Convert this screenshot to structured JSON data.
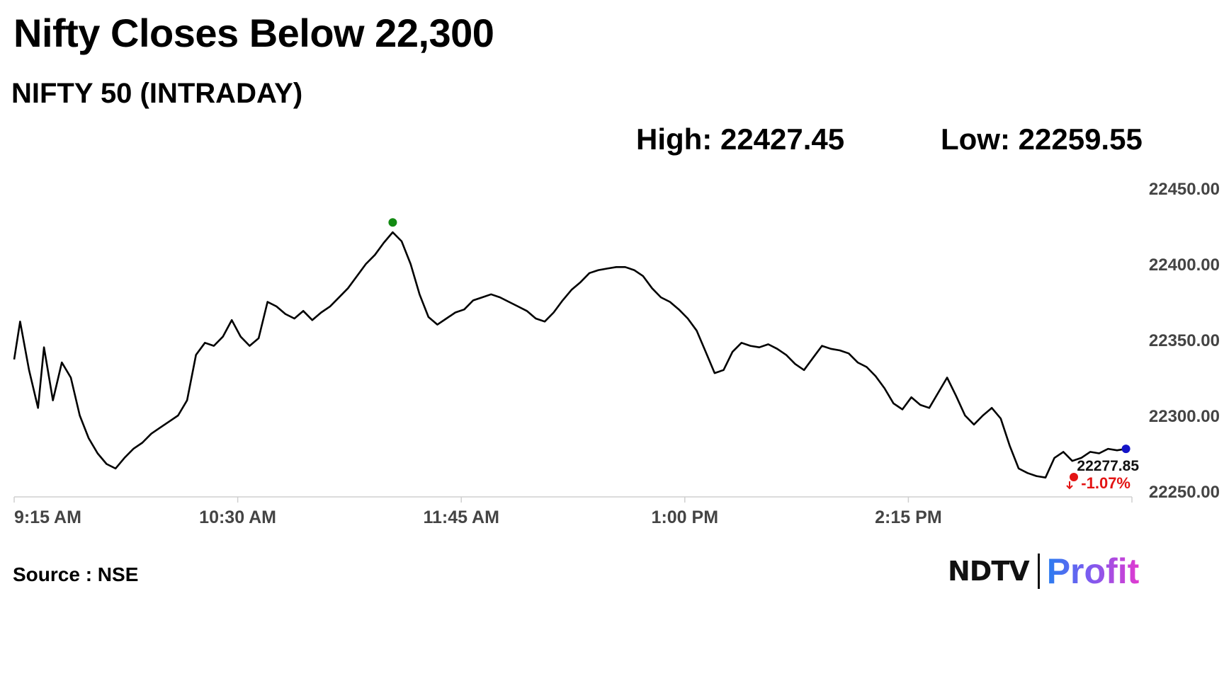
{
  "title": "Nifty Closes Below 22,300",
  "subtitle": "NIFTY 50 (INTRADAY)",
  "stats": {
    "high_label": "High: 22427.45",
    "low_label": "Low: 22259.55"
  },
  "source": "Source : NSE",
  "brand": {
    "left": "NDTV",
    "right": "Profit"
  },
  "colors": {
    "line": "#000000",
    "high_marker": "#138a13",
    "close_marker": "#e31414",
    "last_marker": "#1414c8",
    "change_text": "#e31414"
  },
  "chart_data": {
    "type": "line",
    "title": "NIFTY 50 (INTRADAY)",
    "xlabel": "",
    "ylabel": "",
    "x_range": [
      "9:15 AM",
      "3:30 PM"
    ],
    "x_ticks": [
      "9:15 AM",
      "10:30 AM",
      "11:45 AM",
      "1:00 PM",
      "2:15 PM"
    ],
    "ylim": [
      22250,
      22450
    ],
    "y_ticks": [
      "22250.00",
      "22300.00",
      "22350.00",
      "22400.00",
      "22450.00"
    ],
    "grid": false,
    "high": 22427.45,
    "low": 22259.55,
    "last_value_label": "22277.85",
    "change_label": "-1.07%",
    "series": [
      {
        "x": [
          "9:15 AM",
          "9:17 AM",
          "9:20 AM",
          "9:23 AM",
          "9:25 AM",
          "9:28 AM",
          "9:31 AM",
          "9:34 AM",
          "9:37 AM",
          "9:40 AM",
          "9:43 AM",
          "9:46 AM",
          "9:49 AM",
          "9:52 AM",
          "9:55 AM",
          "9:58 AM",
          "10:01 AM",
          "10:04 AM",
          "10:07 AM",
          "10:10 AM",
          "10:13 AM",
          "10:16 AM",
          "10:19 AM",
          "10:22 AM",
          "10:25 AM",
          "10:28 AM",
          "10:31 AM",
          "10:34 AM",
          "10:37 AM",
          "10:40 AM",
          "10:43 AM",
          "10:46 AM",
          "10:49 AM",
          "10:52 AM",
          "10:55 AM",
          "10:58 AM",
          "11:01 AM",
          "11:04 AM",
          "11:07 AM",
          "11:10 AM",
          "11:13 AM",
          "11:16 AM",
          "11:19 AM",
          "11:22 AM",
          "11:25 AM",
          "11:28 AM",
          "11:31 AM",
          "11:34 AM",
          "11:37 AM",
          "11:40 AM",
          "11:43 AM",
          "11:46 AM",
          "11:49 AM",
          "11:52 AM",
          "11:55 AM",
          "11:58 AM",
          "12:01 PM",
          "12:04 PM",
          "12:07 PM",
          "12:10 PM",
          "12:13 PM",
          "12:16 PM",
          "12:19 PM",
          "12:22 PM",
          "12:25 PM",
          "12:28 PM",
          "12:31 PM",
          "12:34 PM",
          "12:37 PM",
          "12:40 PM",
          "12:43 PM",
          "12:46 PM",
          "12:49 PM",
          "12:52 PM",
          "12:55 PM",
          "12:58 PM",
          "1:01 PM",
          "1:04 PM",
          "1:07 PM",
          "1:10 PM",
          "1:13 PM",
          "1:16 PM",
          "1:19 PM",
          "1:22 PM",
          "1:25 PM",
          "1:28 PM",
          "1:31 PM",
          "1:34 PM",
          "1:37 PM",
          "1:40 PM",
          "1:43 PM",
          "1:46 PM",
          "1:49 PM",
          "1:52 PM",
          "1:55 PM",
          "1:58 PM",
          "2:01 PM",
          "2:04 PM",
          "2:07 PM",
          "2:10 PM",
          "2:13 PM",
          "2:16 PM",
          "2:19 PM",
          "2:22 PM",
          "2:25 PM",
          "2:28 PM",
          "2:31 PM",
          "2:34 PM",
          "2:37 PM",
          "2:40 PM",
          "2:43 PM",
          "2:46 PM",
          "2:49 PM",
          "2:52 PM",
          "2:55 PM",
          "2:58 PM",
          "3:01 PM",
          "3:04 PM",
          "3:07 PM",
          "3:10 PM",
          "3:13 PM",
          "3:16 PM",
          "3:19 PM",
          "3:22 PM",
          "3:25 PM",
          "3:28 PM"
        ],
        "values": [
          22337,
          22362,
          22330,
          22305,
          22345,
          22310,
          22335,
          22325,
          22300,
          22285,
          22275,
          22268,
          22265,
          22272,
          22278,
          22282,
          22288,
          22292,
          22296,
          22300,
          22310,
          22340,
          22348,
          22346,
          22352,
          22363,
          22352,
          22346,
          22351,
          22375,
          22372,
          22367,
          22364,
          22369,
          22363,
          22368,
          22372,
          22378,
          22384,
          22392,
          22400,
          22406,
          22414,
          22421,
          22415,
          22400,
          22380,
          22365,
          22360,
          22364,
          22368,
          22370,
          22376,
          22378,
          22380,
          22378,
          22375,
          22372,
          22369,
          22364,
          22362,
          22368,
          22376,
          22383,
          22388,
          22394,
          22396,
          22397,
          22398,
          22398,
          22396,
          22392,
          22384,
          22378,
          22375,
          22370,
          22364,
          22356,
          22342,
          22328,
          22330,
          22342,
          22348,
          22346,
          22345,
          22347,
          22344,
          22340,
          22334,
          22330,
          22338,
          22346,
          22344,
          22343,
          22341,
          22335,
          22332,
          22326,
          22318,
          22308,
          22304,
          22312,
          22307,
          22305,
          22315,
          22325,
          22313,
          22300,
          22294,
          22300,
          22305,
          22298,
          22280,
          22265,
          22262,
          22260,
          22259,
          22272,
          22276,
          22270,
          22272,
          22276,
          22275,
          22278,
          22277,
          22278
        ]
      }
    ]
  }
}
